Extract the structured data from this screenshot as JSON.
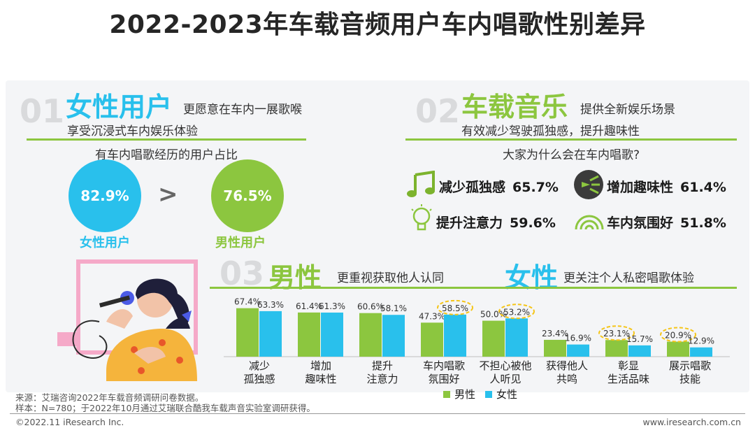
{
  "title": "2022-2023年车载音频用户车内唱歌性别差异",
  "sec1": {
    "num": "01",
    "head": "女性用户",
    "sub1": "更愿意在车内一展歌喉",
    "sub2": "享受沉浸式车内娱乐体验",
    "caption": "有车内唱歌经历的用户占比",
    "female_pct": "82.9%",
    "male_pct": "76.5%",
    "compare": ">",
    "female_label": "女性用户",
    "male_label": "男性用户"
  },
  "sec2": {
    "num": "02",
    "head": "车载音乐",
    "sub1": "提供全新娱乐场景",
    "sub2": "有效减少驾驶孤独感，提升趣味性",
    "question": "大家为什么会在车内唱歌?",
    "reasons": [
      {
        "label": "减少孤独感",
        "pct": "65.7%",
        "icon": "music-note-icon"
      },
      {
        "label": "增加趣味性",
        "pct": "61.4%",
        "icon": "fun-icon"
      },
      {
        "label": "提升注意力",
        "pct": "59.6%",
        "icon": "lightbulb-icon"
      },
      {
        "label": "车内氛围好",
        "pct": "51.8%",
        "icon": "signal-icon"
      }
    ]
  },
  "sec3": {
    "num": "03",
    "head_male": "男性",
    "sub_male": "更重视获取他人认同",
    "head_female": "女性",
    "sub_female": "更关注个人私密唱歌体验"
  },
  "chart_data": {
    "type": "bar",
    "categories": [
      [
        "减少",
        "孤独感"
      ],
      [
        "增加",
        "趣味性"
      ],
      [
        "提升",
        "注意力"
      ],
      [
        "车内唱歌",
        "氛围好"
      ],
      [
        "不担心被他",
        "人听见"
      ],
      [
        "获得他人",
        "共鸣"
      ],
      [
        "彰显",
        "生活品味"
      ],
      [
        "展示唱歌",
        "技能"
      ]
    ],
    "series": [
      {
        "name": "男性",
        "color": "#8cc63f",
        "values": [
          67.4,
          61.4,
          60.6,
          47.3,
          50.0,
          23.4,
          23.1,
          20.9
        ],
        "labels": [
          "67.4%",
          "61.4%",
          "60.6%",
          "47.3%",
          "50.0%",
          "23.4%",
          "23.1%",
          "20.9%"
        ]
      },
      {
        "name": "女性",
        "color": "#29c0ec",
        "values": [
          63.3,
          61.3,
          58.1,
          58.5,
          53.2,
          16.9,
          15.7,
          12.9
        ],
        "labels": [
          "63.3%",
          "61.3%",
          "58.1%",
          "58.5%",
          "53.2%",
          "16.9%",
          "15.7%",
          "12.9%"
        ]
      }
    ],
    "highlight": [
      [
        1,
        3
      ],
      [
        1,
        4
      ],
      [
        0,
        6
      ],
      [
        0,
        7
      ]
    ],
    "ylim": [
      0,
      70
    ],
    "legend": "bottom"
  },
  "footer": {
    "source": "来源：艾瑞咨询2022年车载音频调研问卷数据。",
    "sample": "样本：N=780；于2022年10月通过艾瑞联合酷我车载声音实验室调研获得。",
    "copyright": "©2022.11 iResearch Inc.",
    "site": "www.iresearch.com.cn"
  }
}
